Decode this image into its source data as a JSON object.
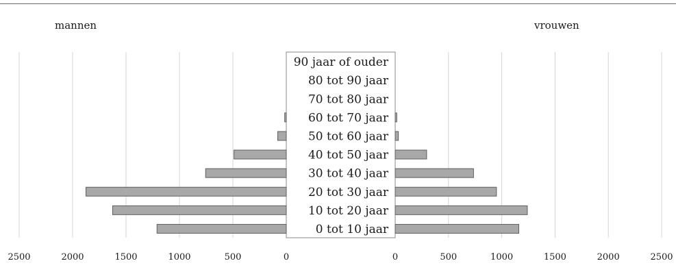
{
  "chart_data": {
    "type": "bar",
    "orientation": "horizontal",
    "layout": "population-pyramid",
    "categories": [
      "0 tot 10 jaar",
      "10 tot 20 jaar",
      "20 tot 30 jaar",
      "30 tot 40 jaar",
      "40 tot 50 jaar",
      "50 tot 60 jaar",
      "60 tot 70 jaar",
      "70 tot 80 jaar",
      "80 tot 90 jaar",
      "90 jaar of ouder"
    ],
    "series": [
      {
        "name": "mannen",
        "side": "left",
        "values": [
          1210,
          1625,
          1875,
          755,
          490,
          80,
          15,
          0,
          0,
          0
        ]
      },
      {
        "name": "vrouwen",
        "side": "right",
        "values": [
          1160,
          1240,
          950,
          735,
          295,
          30,
          15,
          0,
          0,
          0
        ]
      }
    ],
    "left_axis": {
      "ticks": [
        2500,
        2000,
        1500,
        1000,
        500,
        0
      ],
      "tick_labels": [
        "2500",
        "2000",
        "1500",
        "1000",
        "500",
        "0"
      ]
    },
    "right_axis": {
      "ticks": [
        0,
        500,
        1000,
        1500,
        2000,
        2500
      ],
      "tick_labels": [
        "0",
        "500",
        "1000",
        "1500",
        "2000",
        "2500"
      ]
    },
    "xlim": [
      0,
      2500
    ],
    "grid": true,
    "colors": {
      "bar_fill": "#a8a8a8",
      "bar_stroke": "#5f5f5f",
      "gridline": "#d4d4d4"
    }
  }
}
